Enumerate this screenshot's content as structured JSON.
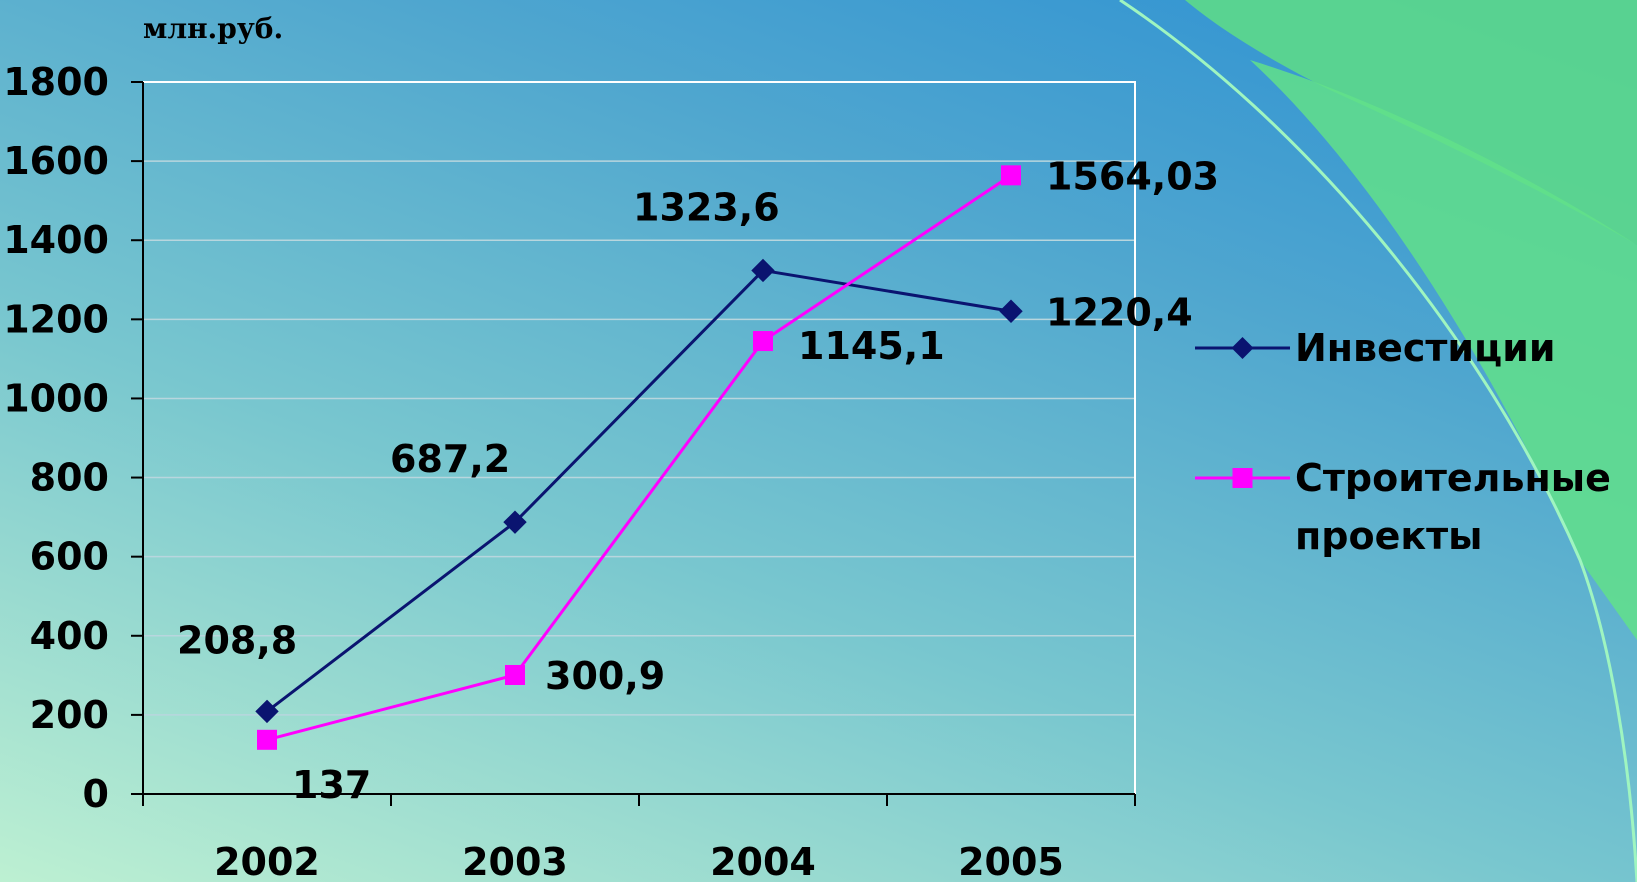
{
  "chart_data": {
    "type": "line",
    "title": "",
    "unit_label": "млн.руб.",
    "xlabel": "",
    "ylabel": "",
    "categories": [
      "2002",
      "2003",
      "2004",
      "2005"
    ],
    "ylim": [
      0,
      1800
    ],
    "yticks": [
      0,
      200,
      400,
      600,
      800,
      1000,
      1200,
      1400,
      1600,
      1800
    ],
    "ytick_labels": [
      "0",
      "200",
      "400",
      "600",
      "800",
      "1000",
      "1200",
      "1400",
      "1600",
      "1800"
    ],
    "grid": true,
    "legend_position": "right",
    "series": [
      {
        "name": "Инвестиции",
        "name_lines": [
          "Инвестиции"
        ],
        "values": [
          208.8,
          687.2,
          1323.6,
          1220.4
        ],
        "labels": [
          "208,8",
          "687,2",
          "1323,6",
          "1220,4"
        ],
        "color": "#0a1470",
        "marker": "diamond"
      },
      {
        "name": "Строительные проекты",
        "name_lines": [
          "Строительные",
          "проекты"
        ],
        "values": [
          137,
          300.9,
          1145.1,
          1564.03
        ],
        "labels": [
          "137",
          "300,9",
          "1145,1",
          "1564,03"
        ],
        "color": "#ff00ff",
        "marker": "square"
      }
    ]
  }
}
